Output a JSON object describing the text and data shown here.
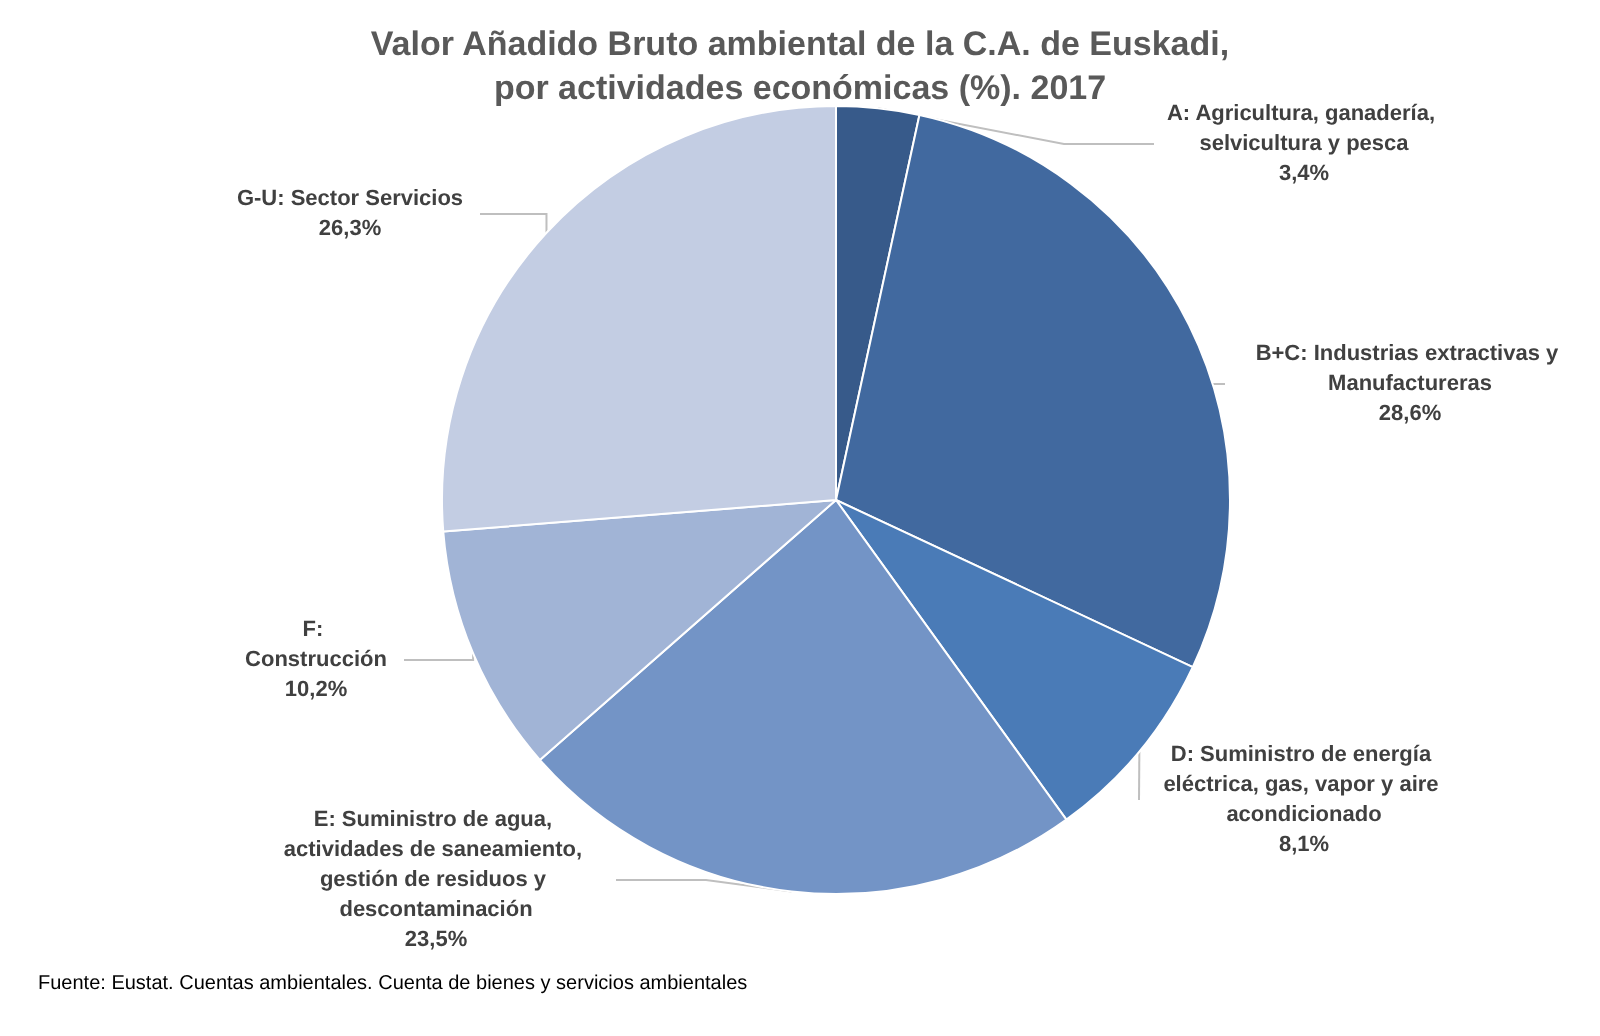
{
  "chart_data": {
    "type": "pie",
    "title": "Valor Añadido Bruto ambiental de la C.A. de Euskadi,\npor actividades económicas (%). 2017",
    "categories": [
      "A: Agricultura, ganadería, selvicultura y pesca",
      "B+C: Industrias extractivas y Manufactureras",
      "D: Suministro de energía eléctrica, gas, vapor y aire acondicionado",
      "E: Suministro de agua, actividades de saneamiento, gestión de residuos y descontaminación",
      "F: Construcción",
      "G-U: Sector Servicios"
    ],
    "values": [
      3.4,
      28.6,
      8.1,
      23.5,
      10.2,
      26.3
    ],
    "value_labels": [
      "3,4%",
      "28,6%",
      "8,1%",
      "23,5%",
      "10,2%",
      "26,3%"
    ],
    "colors": [
      "#375a8a",
      "#41699f",
      "#4a7bb7",
      "#7394c6",
      "#a1b4d6",
      "#c3cde3"
    ],
    "annotations": [
      "Fuente: Eustat. Cuentas ambientales. Cuenta de bienes y servicios ambientales"
    ]
  }
}
